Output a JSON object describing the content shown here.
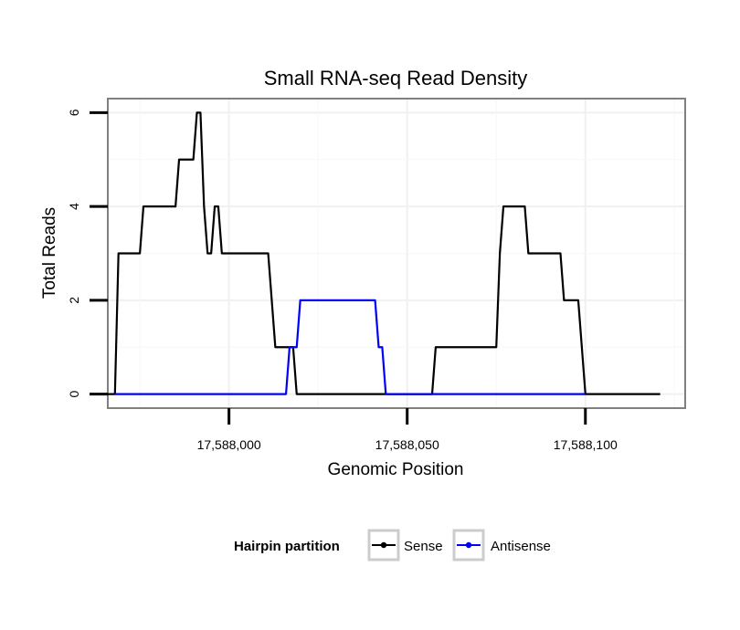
{
  "chart_data": {
    "type": "line",
    "title": "Small RNA-seq Read Density",
    "xlabel": "Genomic Position",
    "ylabel": "Total Reads",
    "xlim": [
      17587966,
      17588128
    ],
    "ylim": [
      -0.3,
      6.3
    ],
    "x_ticks": [
      {
        "value": 17588000,
        "label": "17,588,000"
      },
      {
        "value": 17588050,
        "label": "17,588,050"
      },
      {
        "value": 17588100,
        "label": "17,588,100"
      }
    ],
    "y_ticks": [
      {
        "value": 0,
        "label": "0"
      },
      {
        "value": 2,
        "label": "2"
      },
      {
        "value": 4,
        "label": "4"
      },
      {
        "value": 6,
        "label": "6"
      }
    ],
    "grid": true,
    "legend": {
      "title": "Hairpin partition",
      "position": "bottom"
    },
    "series": [
      {
        "name": "Sense",
        "color": "#000000",
        "x": [
          17587964,
          17587968,
          17587969,
          17587975,
          17587976,
          17587985,
          17587986,
          17587990,
          17587991,
          17587992,
          17587993,
          17587994,
          17587995,
          17587996,
          17587997,
          17587998,
          17588001,
          17588011,
          17588013,
          17588017,
          17588018,
          17588019,
          17588020,
          17588057,
          17588058,
          17588075,
          17588076,
          17588077,
          17588083,
          17588084,
          17588093,
          17588094,
          17588098,
          17588100,
          17588121
        ],
        "values": [
          0,
          0,
          3,
          3,
          4,
          4,
          5,
          5,
          6,
          6,
          4,
          3,
          3,
          4,
          4,
          3,
          3,
          3,
          1,
          1,
          1,
          0,
          0,
          0,
          1,
          1,
          3,
          4,
          4,
          3,
          3,
          2,
          2,
          0,
          0
        ]
      },
      {
        "name": "Antisense",
        "color": "#0000ff",
        "x": [
          17587968,
          17588016,
          17588017,
          17588019,
          17588020,
          17588041,
          17588042,
          17588043,
          17588044,
          17588100
        ],
        "values": [
          0,
          0,
          1,
          1,
          2,
          2,
          1,
          1,
          0,
          0
        ]
      }
    ]
  }
}
